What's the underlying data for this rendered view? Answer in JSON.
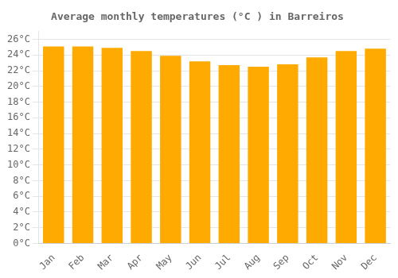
{
  "chart_data": {
    "type": "bar",
    "title": "Average monthly temperatures (°C ) in Barreiros",
    "categories": [
      "Jan",
      "Feb",
      "Mar",
      "Apr",
      "May",
      "Jun",
      "Jul",
      "Aug",
      "Sep",
      "Oct",
      "Nov",
      "Dec"
    ],
    "values": [
      25.1,
      25.1,
      24.9,
      24.5,
      23.9,
      23.2,
      22.7,
      22.5,
      22.8,
      23.7,
      24.5,
      24.8
    ],
    "color": "#FFAA00",
    "ylim": [
      0,
      27
    ],
    "yticks": [
      {
        "value": 0,
        "label": "0°C"
      },
      {
        "value": 2,
        "label": "2°C"
      },
      {
        "value": 4,
        "label": "4°C"
      },
      {
        "value": 6,
        "label": "6°C"
      },
      {
        "value": 8,
        "label": "8°C"
      },
      {
        "value": 10,
        "label": "10°C"
      },
      {
        "value": 12,
        "label": "12°C"
      },
      {
        "value": 14,
        "label": "14°C"
      },
      {
        "value": 16,
        "label": "16°C"
      },
      {
        "value": 18,
        "label": "18°C"
      },
      {
        "value": 20,
        "label": "20°C"
      },
      {
        "value": 22,
        "label": "22°C"
      },
      {
        "value": 24,
        "label": "24°C"
      },
      {
        "value": 26,
        "label": "26°C"
      }
    ],
    "grid": true
  }
}
